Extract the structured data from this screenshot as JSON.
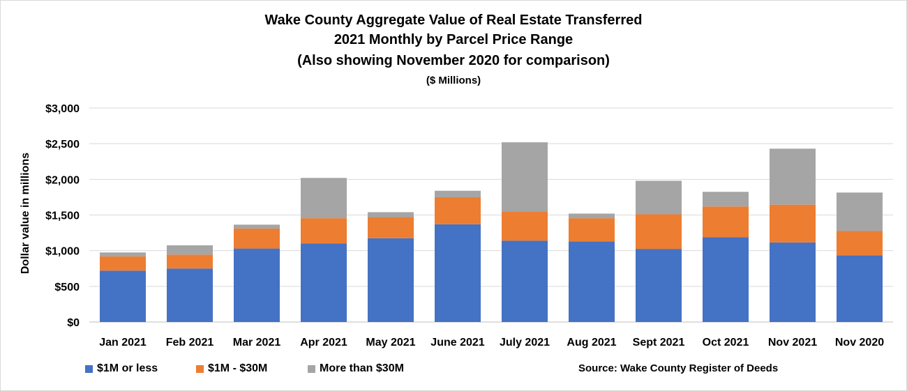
{
  "chart_data": {
    "type": "bar",
    "stacked": true,
    "title": "Wake County Aggregate Value of Real Estate Transferred",
    "subtitle_lines": [
      "2021 Monthly by Parcel Price Range",
      "(Also showing November 2020 for comparison)",
      "($ Millions)"
    ],
    "ylabel": "Dollar value in millions",
    "xlabel": "",
    "ylim": [
      0,
      3000
    ],
    "yticks": [
      0,
      500,
      1000,
      1500,
      2000,
      2500,
      3000
    ],
    "ytick_labels": [
      "$0",
      "$500",
      "$1,000",
      "$1,500",
      "$2,000",
      "$2,500",
      "$3,000"
    ],
    "grid": true,
    "legend_position": "bottom-left",
    "categories": [
      "Jan 2021",
      "Feb 2021",
      "Mar 2021",
      "Apr 2021",
      "May 2021",
      "June 2021",
      "July 2021",
      "Aug 2021",
      "Sept 2021",
      "Oct 2021",
      "Nov 2021",
      "Nov 2020"
    ],
    "series": [
      {
        "name": "$1M or less",
        "color": "#4472c4",
        "values": [
          720,
          750,
          1030,
          1100,
          1175,
          1370,
          1140,
          1130,
          1025,
          1190,
          1115,
          935
        ]
      },
      {
        "name": "$1M - $30M",
        "color": "#ed7d31",
        "values": [
          200,
          195,
          280,
          355,
          295,
          380,
          410,
          325,
          485,
          430,
          530,
          340
        ]
      },
      {
        "name": "More than $30M",
        "color": "#a5a5a5",
        "values": [
          55,
          130,
          55,
          565,
          70,
          90,
          970,
          65,
          470,
          205,
          785,
          540
        ]
      }
    ],
    "source": "Source: Wake County Register of Deeds"
  }
}
